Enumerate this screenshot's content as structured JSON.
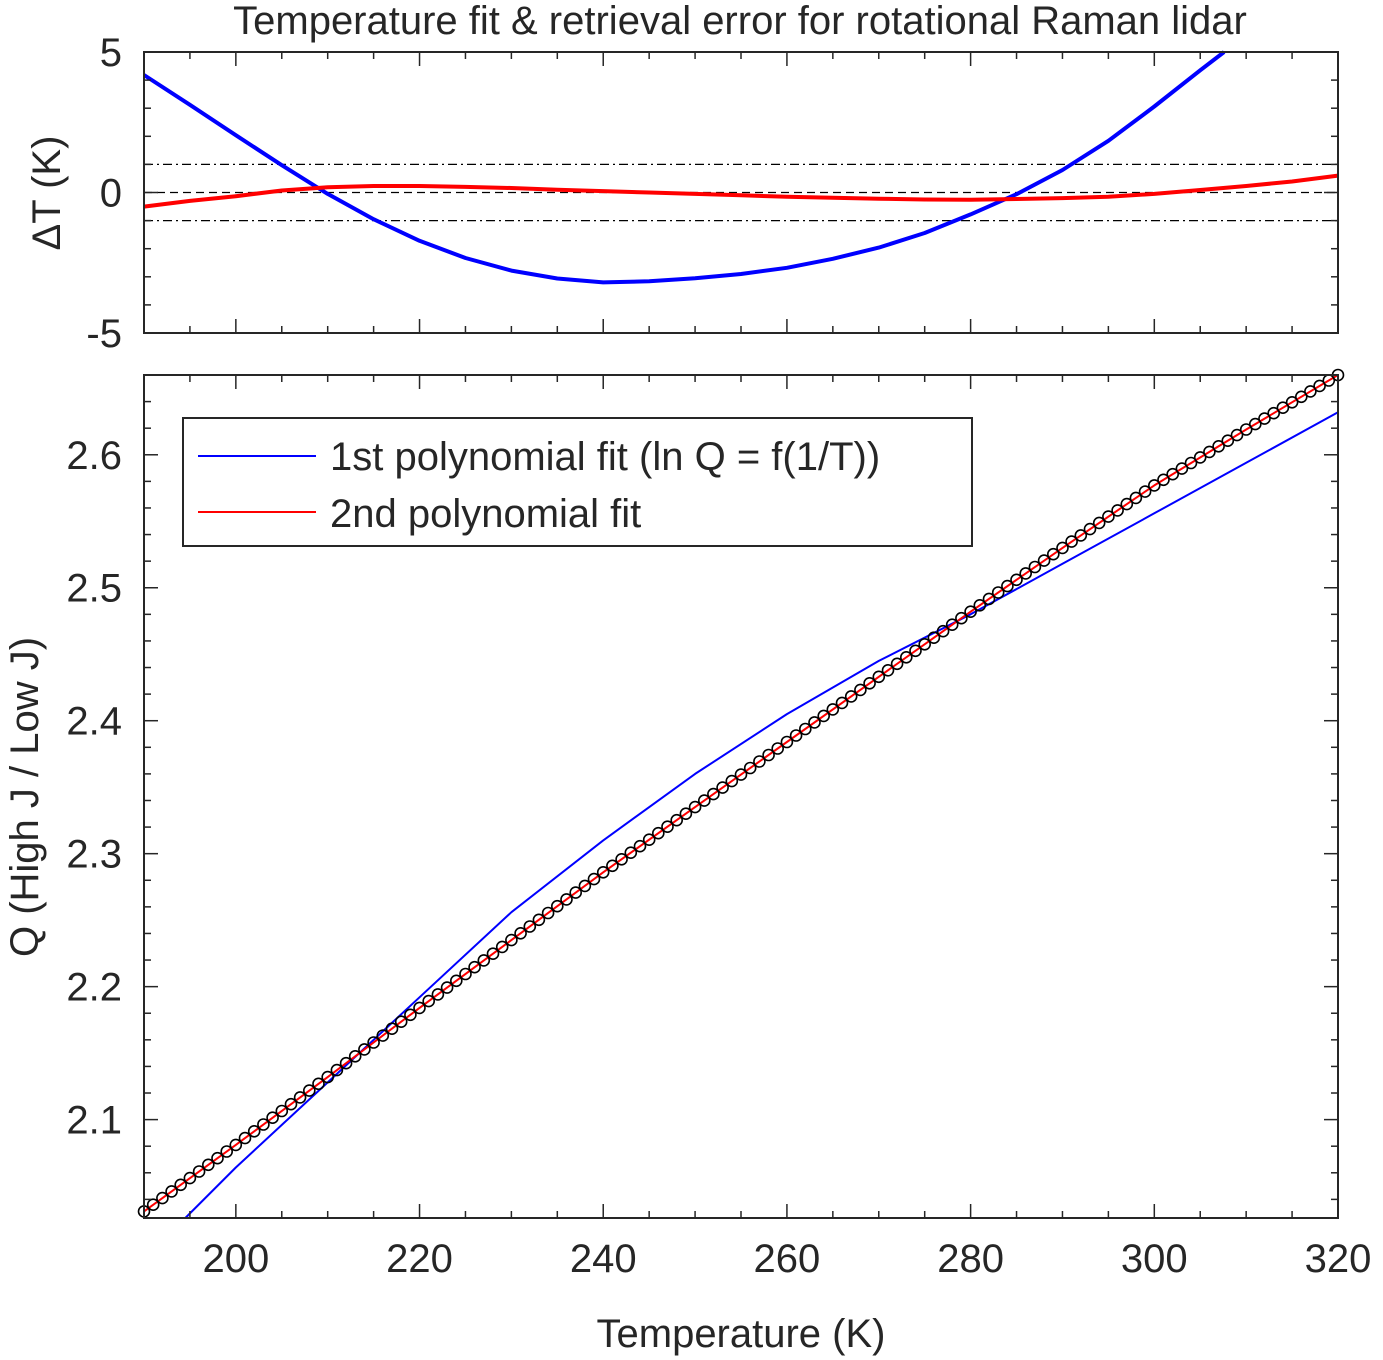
{
  "figure": {
    "title": "Temperature fit & retrieval error for rotational Raman lidar"
  },
  "colors": {
    "fit1": "#0000ff",
    "fit2": "#ff0000",
    "marker": "#000000",
    "axis": "#262626",
    "ref_lines": "#000000"
  },
  "chart_data": [
    {
      "id": "error_panel",
      "type": "line",
      "title": "Temperature fit & retrieval error for rotational Raman lidar",
      "xlabel": "",
      "ylabel": "ΔT (K)",
      "xlim": [
        190,
        320
      ],
      "ylim": [
        -5,
        5
      ],
      "yticks": [
        -5,
        0,
        5
      ],
      "xtick_labels_visible": false,
      "reference_lines": [
        {
          "y": 0,
          "style": "dashed"
        },
        {
          "y": 1,
          "style": "dash-dot"
        },
        {
          "y": -1,
          "style": "dash-dot"
        }
      ],
      "series": [
        {
          "color": "#0000ff",
          "x": [
            190,
            195,
            200,
            205,
            210,
            215,
            220,
            225,
            230,
            235,
            240,
            245,
            250,
            255,
            260,
            265,
            270,
            275,
            280,
            285,
            290,
            295,
            300,
            305,
            307.6
          ],
          "y": [
            4.18,
            3.12,
            2.04,
            0.97,
            -0.05,
            -0.95,
            -1.72,
            -2.33,
            -2.78,
            -3.06,
            -3.2,
            -3.16,
            -3.05,
            -2.9,
            -2.68,
            -2.36,
            -1.96,
            -1.44,
            -0.78,
            -0.06,
            0.8,
            1.84,
            3.06,
            4.35,
            5.0
          ]
        },
        {
          "color": "#ff0000",
          "x": [
            190,
            195,
            200,
            205,
            210,
            215,
            220,
            225,
            230,
            235,
            240,
            245,
            250,
            255,
            260,
            265,
            270,
            275,
            280,
            285,
            290,
            295,
            300,
            305,
            310,
            315,
            320
          ],
          "y": [
            -0.5,
            -0.3,
            -0.13,
            0.07,
            0.19,
            0.23,
            0.23,
            0.2,
            0.16,
            0.1,
            0.05,
            0.0,
            -0.05,
            -0.1,
            -0.15,
            -0.19,
            -0.22,
            -0.25,
            -0.26,
            -0.23,
            -0.2,
            -0.15,
            -0.05,
            0.09,
            0.23,
            0.39,
            0.6
          ]
        }
      ]
    },
    {
      "id": "q_panel",
      "type": "line",
      "xlabel": "Temperature (K)",
      "ylabel": "Q (High J / Low J)",
      "xlim": [
        190,
        320
      ],
      "ylim": [
        2.026,
        2.66
      ],
      "xticks": [
        200,
        220,
        240,
        260,
        280,
        300,
        320
      ],
      "yticks": [
        2.1,
        2.2,
        2.3,
        2.4,
        2.5,
        2.6
      ],
      "legend": {
        "placement": "top-left"
      },
      "series": [
        {
          "name": "1st polynomial fit (ln Q = f(1/T))",
          "color": "#0000ff",
          "style": "line",
          "x": [
            194.5,
            200,
            210,
            220,
            230,
            240,
            250,
            260,
            270,
            280,
            290,
            300,
            310,
            320
          ],
          "y": [
            2.026,
            2.064,
            2.128,
            2.192,
            2.256,
            2.31,
            2.36,
            2.405,
            2.445,
            2.48,
            2.518,
            2.556,
            2.594,
            2.632
          ]
        },
        {
          "name": "2nd polynomial fit",
          "color": "#ff0000",
          "style": "line",
          "x": [
            190,
            200,
            210,
            220,
            230,
            240,
            250,
            260,
            270,
            280,
            290,
            300,
            310,
            320
          ],
          "y": [
            2.031,
            2.081,
            2.132,
            2.184,
            2.235,
            2.286,
            2.335,
            2.384,
            2.433,
            2.482,
            2.53,
            2.577,
            2.619,
            2.66
          ]
        },
        {
          "style": "markers",
          "color": "#000000",
          "marker": "open-circle",
          "x_start": 190,
          "x_end": 320,
          "x_step": 1,
          "x": [
            190,
            200,
            210,
            220,
            230,
            240,
            250,
            260,
            270,
            280,
            290,
            300,
            310,
            320
          ],
          "y": [
            2.031,
            2.081,
            2.132,
            2.184,
            2.235,
            2.286,
            2.335,
            2.384,
            2.433,
            2.482,
            2.53,
            2.577,
            2.619,
            2.66
          ]
        }
      ]
    }
  ]
}
